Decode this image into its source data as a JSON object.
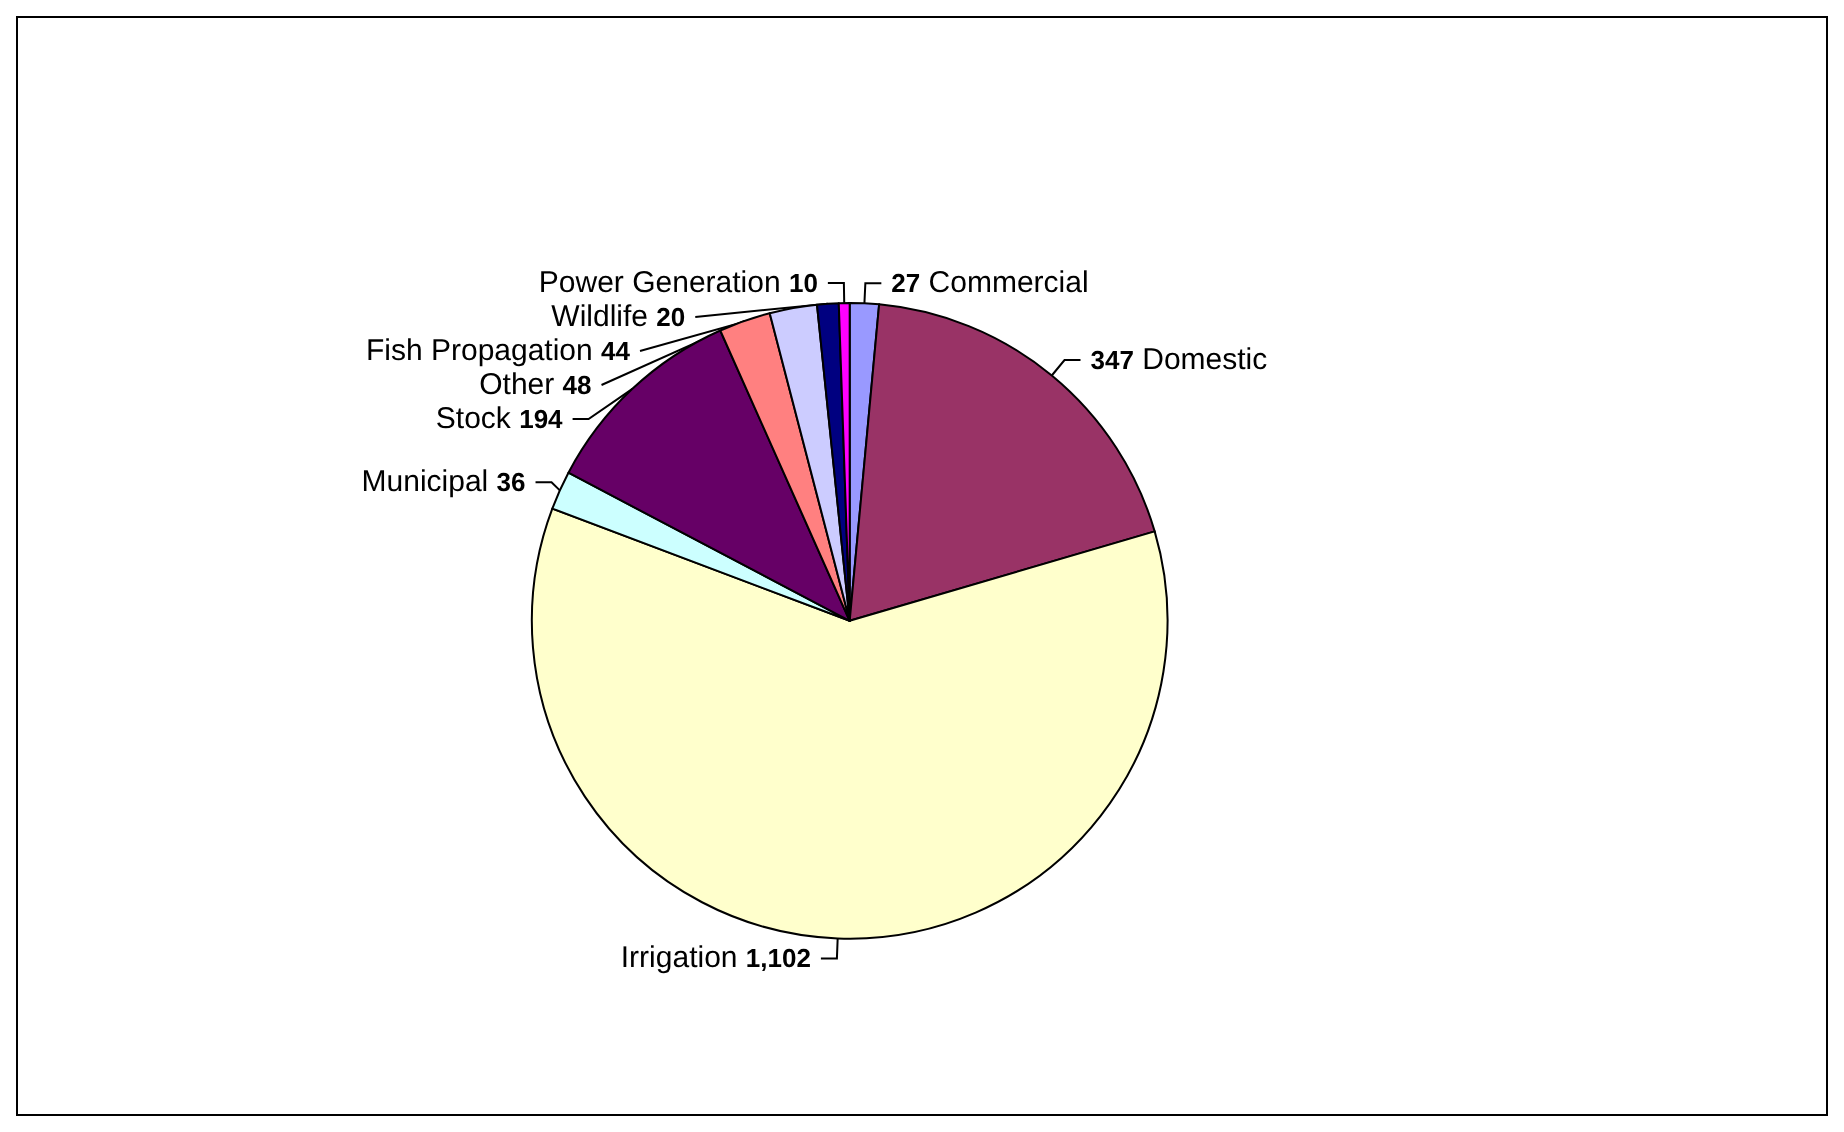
{
  "chart_data": {
    "type": "pie",
    "categories": [
      "Commercial",
      "Domestic",
      "Irrigation",
      "Municipal",
      "Stock",
      "Other",
      "Fish Propagation",
      "Wildlife",
      "Power Generation"
    ],
    "values": [
      27,
      347,
      1102,
      36,
      194,
      48,
      44,
      20,
      10
    ],
    "value_labels": [
      "27",
      "347",
      "1,102",
      "36",
      "194",
      "48",
      "44",
      "20",
      "10"
    ],
    "colors": [
      "#9999ff",
      "#993366",
      "#ffffcc",
      "#ccffff",
      "#660066",
      "#ff8080",
      "#ccccff",
      "#000080",
      "#ff00ff"
    ],
    "legend": false
  }
}
